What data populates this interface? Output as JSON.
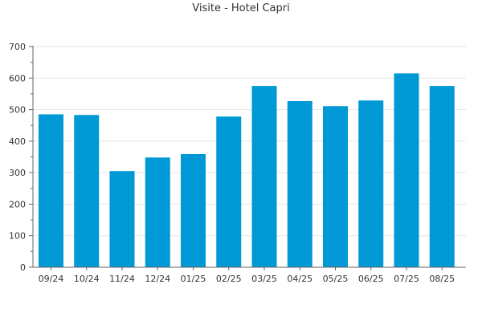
{
  "chart_data": {
    "type": "bar",
    "title": "Visite - Hotel Capri",
    "categories": [
      "09/24",
      "10/24",
      "11/24",
      "12/24",
      "01/25",
      "02/25",
      "03/25",
      "04/25",
      "05/25",
      "06/25",
      "07/25",
      "08/25"
    ],
    "values": [
      485,
      483,
      305,
      348,
      359,
      478,
      575,
      527,
      511,
      529,
      615,
      575
    ],
    "ylim": [
      0,
      700
    ],
    "yticks": [
      0,
      100,
      200,
      300,
      400,
      500,
      600,
      700
    ],
    "grid": true,
    "bar_color": "#0099d6",
    "grid_color": "#e6e6e6",
    "axis_color": "#666666"
  }
}
